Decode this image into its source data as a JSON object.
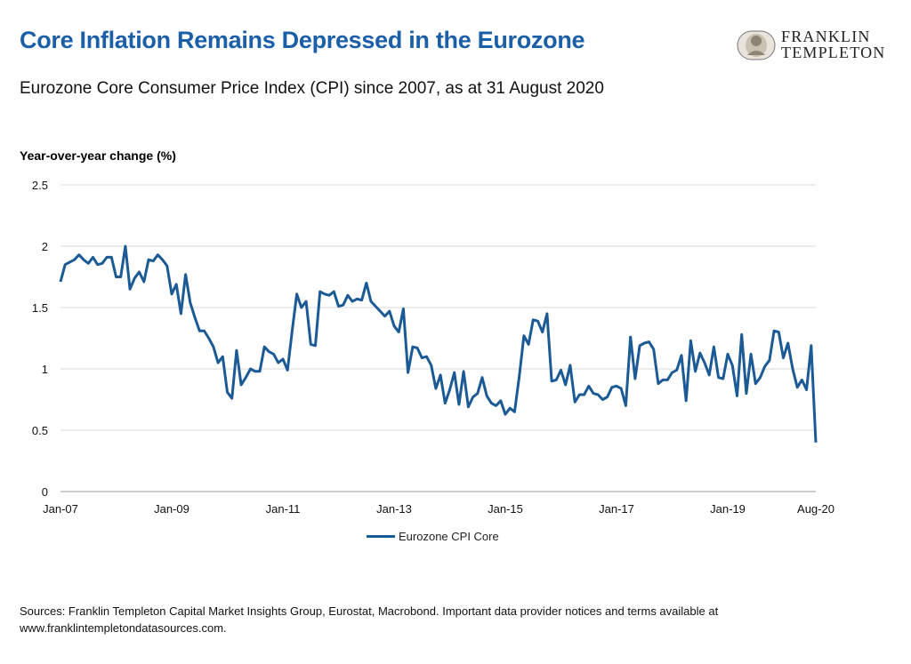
{
  "header": {
    "title": "Core Inflation Remains Depressed in the Eurozone",
    "subtitle": "Eurozone Core Consumer Price Index (CPI) since 2007, as at 31 August 2020"
  },
  "logo": {
    "line1": "FRANKLIN",
    "line2": "TEMPLETON"
  },
  "footer": {
    "source_line1": "Sources: Franklin Templeton Capital Market Insights Group, Eurostat, Macrobond. Important data provider notices and terms available at",
    "source_line2": "www.franklintempletondatasources.com."
  },
  "colors": {
    "title": "#1b5fa8",
    "series": "#1c5a96",
    "grid": "#d9d9d9"
  },
  "chart_data": {
    "type": "line",
    "ylabel": "Year-over-year change (%)",
    "ylim": [
      0,
      2.5
    ],
    "yticks": [
      "0",
      "0.5",
      "1",
      "1.5",
      "2",
      "2.5"
    ],
    "x_tick_labels": [
      "Jan-07",
      "Jan-09",
      "Jan-11",
      "Jan-13",
      "Jan-15",
      "Jan-17",
      "Jan-19",
      "Aug-20"
    ],
    "x_start": "2007-01",
    "x_end": "2020-08",
    "grid": "horizontal",
    "legend": "bottom-center",
    "series": [
      {
        "name": "Eurozone CPI Core",
        "values": [
          1.71,
          1.85,
          1.87,
          1.89,
          1.93,
          1.89,
          1.86,
          1.91,
          1.85,
          1.86,
          1.91,
          1.91,
          1.75,
          1.75,
          2.0,
          1.65,
          1.74,
          1.79,
          1.71,
          1.89,
          1.88,
          1.93,
          1.89,
          1.84,
          1.61,
          1.69,
          1.45,
          1.77,
          1.54,
          1.42,
          1.31,
          1.31,
          1.25,
          1.18,
          1.05,
          1.1,
          0.81,
          0.76,
          1.15,
          0.87,
          0.93,
          1.0,
          0.98,
          0.98,
          1.18,
          1.14,
          1.12,
          1.05,
          1.08,
          0.99,
          1.31,
          1.61,
          1.5,
          1.55,
          1.2,
          1.19,
          1.63,
          1.61,
          1.6,
          1.63,
          1.51,
          1.52,
          1.6,
          1.55,
          1.57,
          1.56,
          1.7,
          1.55,
          1.51,
          1.47,
          1.43,
          1.47,
          1.35,
          1.3,
          1.49,
          0.97,
          1.18,
          1.17,
          1.09,
          1.1,
          1.03,
          0.84,
          0.95,
          0.72,
          0.83,
          0.97,
          0.71,
          0.98,
          0.69,
          0.77,
          0.8,
          0.93,
          0.78,
          0.72,
          0.7,
          0.74,
          0.63,
          0.68,
          0.65,
          0.94,
          1.27,
          1.2,
          1.4,
          1.39,
          1.3,
          1.45,
          0.9,
          0.91,
          0.99,
          0.87,
          1.03,
          0.73,
          0.79,
          0.79,
          0.86,
          0.8,
          0.79,
          0.75,
          0.77,
          0.85,
          0.86,
          0.84,
          0.7,
          1.26,
          0.92,
          1.19,
          1.21,
          1.22,
          1.16,
          0.88,
          0.91,
          0.91,
          0.97,
          0.99,
          1.11,
          0.74,
          1.23,
          0.98,
          1.13,
          1.05,
          0.95,
          1.18,
          0.93,
          0.92,
          1.12,
          1.03,
          0.78,
          1.28,
          0.8,
          1.12,
          0.88,
          0.93,
          1.02,
          1.07,
          1.31,
          1.3,
          1.09,
          1.21,
          1.0,
          0.85,
          0.91,
          0.83,
          1.19,
          0.4
        ]
      }
    ]
  }
}
